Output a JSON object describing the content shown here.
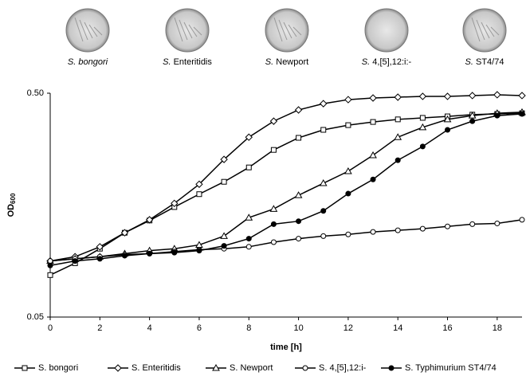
{
  "plates": [
    {
      "genus": "S.",
      "label": "bongori",
      "italic": true
    },
    {
      "genus": "S.",
      "label": "Enteritidis",
      "italic": false
    },
    {
      "genus": "S.",
      "label": "Newport",
      "italic": false
    },
    {
      "genus": "S.",
      "label": "4,[5],12:i:-",
      "italic": false
    },
    {
      "genus": "S.",
      "label": "ST4/74",
      "italic": false
    }
  ],
  "chart_data": {
    "type": "line",
    "x_label": "time [h]",
    "y_label": {
      "text": "OD",
      "subscript": "600"
    },
    "x": [
      0,
      1,
      2,
      3,
      4,
      5,
      6,
      7,
      8,
      9,
      10,
      11,
      12,
      13,
      14,
      15,
      16,
      17,
      18,
      19
    ],
    "xlim": [
      0,
      19
    ],
    "xticks": [
      0,
      2,
      4,
      6,
      8,
      10,
      12,
      14,
      16,
      18
    ],
    "ylim": [
      0.05,
      0.5
    ],
    "yticks": [
      0.05,
      {
        "value": 0.5,
        "label": "0.50"
      }
    ],
    "log_y": true,
    "series": [
      {
        "name": "S. bongori",
        "color": "#000000",
        "marker": "square",
        "values": [
          0.077,
          0.087,
          0.101,
          0.119,
          0.135,
          0.155,
          0.177,
          0.201,
          0.233,
          0.279,
          0.316,
          0.343,
          0.36,
          0.372,
          0.382,
          0.388,
          0.394,
          0.401,
          0.404,
          0.407
        ]
      },
      {
        "name": "S. Enteritidis",
        "color": "#000000",
        "marker": "diamond",
        "values": [
          0.089,
          0.093,
          0.103,
          0.119,
          0.136,
          0.161,
          0.196,
          0.253,
          0.318,
          0.375,
          0.421,
          0.449,
          0.468,
          0.476,
          0.48,
          0.484,
          0.484,
          0.488,
          0.492,
          0.488
        ]
      },
      {
        "name": "S. Newport",
        "color": "#000000",
        "marker": "triangle",
        "values": [
          0.089,
          0.091,
          0.093,
          0.096,
          0.099,
          0.101,
          0.105,
          0.115,
          0.139,
          0.152,
          0.175,
          0.198,
          0.224,
          0.264,
          0.318,
          0.352,
          0.382,
          0.397,
          0.407,
          0.411
        ]
      },
      {
        "name": "S. 4,[5],12:i-",
        "color": "#000000",
        "marker": "circle-open",
        "values": [
          0.089,
          0.091,
          0.093,
          0.095,
          0.096,
          0.098,
          0.1,
          0.101,
          0.103,
          0.108,
          0.112,
          0.115,
          0.117,
          0.12,
          0.122,
          0.124,
          0.127,
          0.13,
          0.131,
          0.136
        ]
      },
      {
        "name": "S. Typhimurium ST4/74",
        "color": "#000000",
        "marker": "circle-filled",
        "values": [
          0.085,
          0.089,
          0.091,
          0.094,
          0.096,
          0.097,
          0.099,
          0.104,
          0.112,
          0.13,
          0.134,
          0.149,
          0.178,
          0.206,
          0.251,
          0.289,
          0.343,
          0.375,
          0.397,
          0.404
        ]
      }
    ]
  }
}
